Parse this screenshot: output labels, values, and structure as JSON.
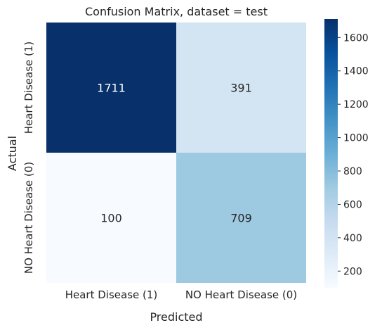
{
  "chart_data": {
    "type": "heatmap",
    "title": "Confusion Matrix, dataset = test",
    "xlabel": "Predicted",
    "ylabel": "Actual",
    "x_categories": [
      "Heart Disease (1)",
      "NO Heart Disease (0)"
    ],
    "y_categories": [
      "Heart Disease (1)",
      "NO Heart Disease (0)"
    ],
    "values": [
      [
        1711,
        391
      ],
      [
        100,
        709
      ]
    ],
    "colormap": "Blues",
    "colorbar": {
      "min": 100,
      "max": 1711,
      "ticks": [
        200,
        400,
        600,
        800,
        1000,
        1200,
        1400,
        1600
      ]
    }
  }
}
